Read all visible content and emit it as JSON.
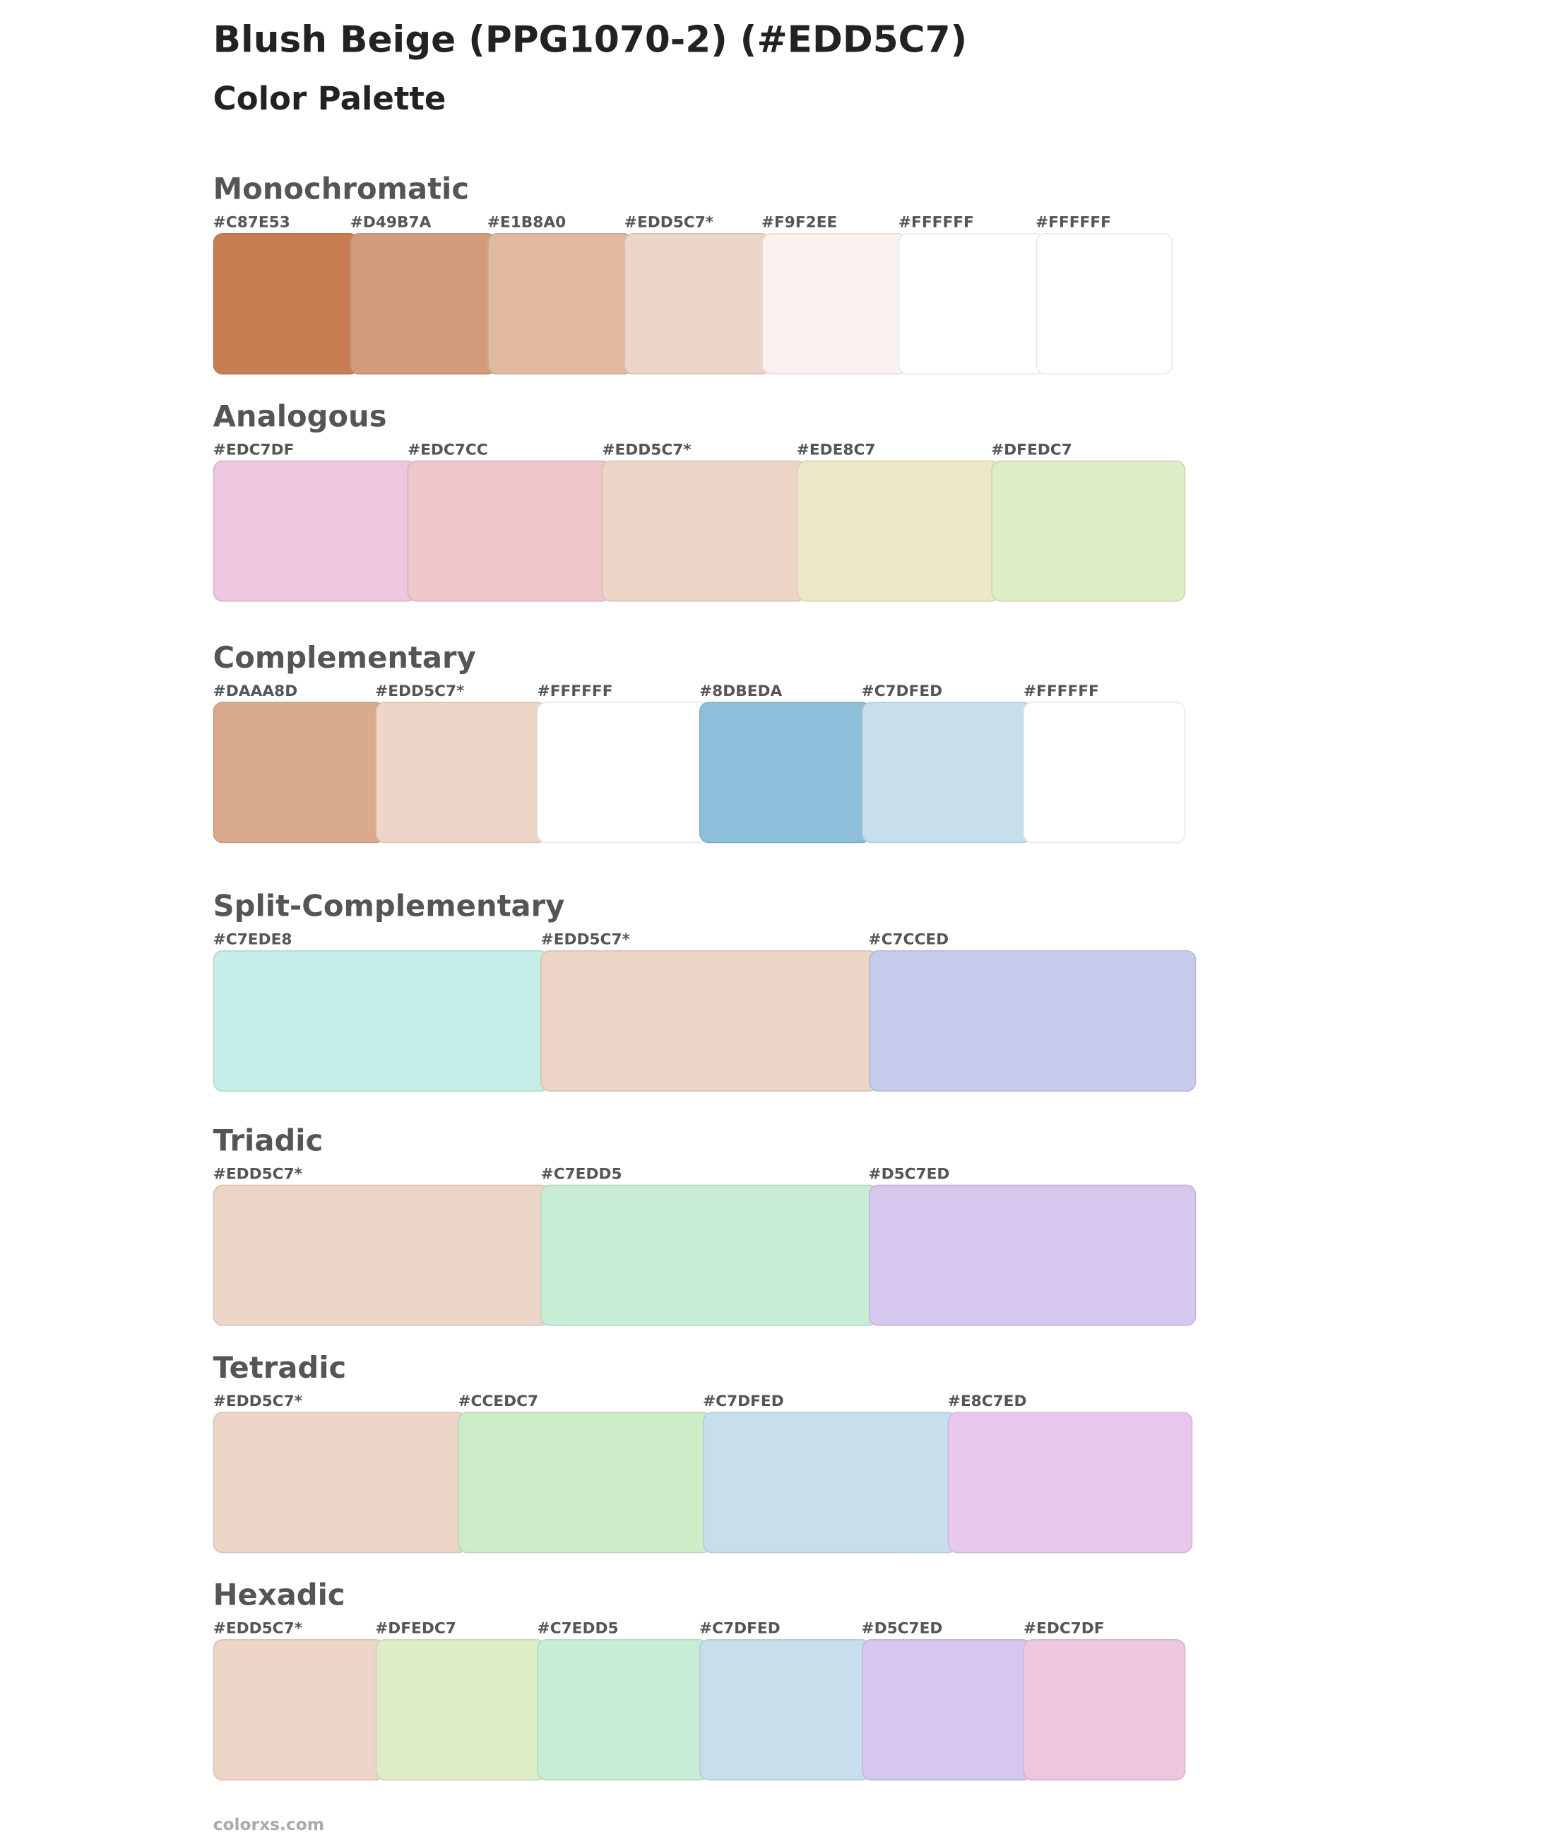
{
  "header": {
    "title": "Blush Beige (PPG1070-2) (#EDD5C7)",
    "subtitle": "Color Palette"
  },
  "sections": [
    {
      "title": "Monochromatic",
      "swatches": [
        {
          "label": "#C87E53",
          "color": "#C87E53"
        },
        {
          "label": "#D49B7A",
          "color": "#D49B7A"
        },
        {
          "label": "#E1B8A0",
          "color": "#E1B8A0"
        },
        {
          "label": "#EDD5C7*",
          "color": "#EDD5C7"
        },
        {
          "label": "#F9F2EE",
          "color": "#F9F2EE"
        },
        {
          "label": "#FFFFFF",
          "color": "#FFFFFF"
        },
        {
          "label": "#FFFFFF",
          "color": "#FFFFFF"
        }
      ]
    },
    {
      "title": "Analogous",
      "swatches": [
        {
          "label": "#EDC7DF",
          "color": "#EDC7DF"
        },
        {
          "label": "#EDC7CC",
          "color": "#EDC7CC"
        },
        {
          "label": "#EDD5C7*",
          "color": "#EDD5C7"
        },
        {
          "label": "#EDE8C7",
          "color": "#EDE8C7"
        },
        {
          "label": "#DFEDC7",
          "color": "#DFEDC7"
        }
      ]
    },
    {
      "title": "Complementary",
      "swatches": [
        {
          "label": "#DAAA8D",
          "color": "#DAAA8D"
        },
        {
          "label": "#EDD5C7*",
          "color": "#EDD5C7"
        },
        {
          "label": "#FFFFFF",
          "color": "#FFFFFF"
        },
        {
          "label": "#8DBEDA",
          "color": "#8DBEDA"
        },
        {
          "label": "#C7DFED",
          "color": "#C7DFED"
        },
        {
          "label": "#FFFFFF",
          "color": "#FFFFFF"
        }
      ]
    },
    {
      "title": "Split-Complementary",
      "swatches": [
        {
          "label": "#C7EDE8",
          "color": "#C7EDE8"
        },
        {
          "label": "#EDD5C7*",
          "color": "#EDD5C7"
        },
        {
          "label": "#C7CCED",
          "color": "#C7CCED"
        }
      ]
    },
    {
      "title": "Triadic",
      "swatches": [
        {
          "label": "#EDD5C7*",
          "color": "#EDD5C7"
        },
        {
          "label": "#C7EDD5",
          "color": "#C7EDD5"
        },
        {
          "label": "#D5C7ED",
          "color": "#D5C7ED"
        }
      ]
    },
    {
      "title": "Tetradic",
      "swatches": [
        {
          "label": "#EDD5C7*",
          "color": "#EDD5C7"
        },
        {
          "label": "#CCEDC7",
          "color": "#CCEDC7"
        },
        {
          "label": "#C7DFED",
          "color": "#C7DFED"
        },
        {
          "label": "#E8C7ED",
          "color": "#E8C7ED"
        }
      ]
    },
    {
      "title": "Hexadic",
      "swatches": [
        {
          "label": "#EDD5C7*",
          "color": "#EDD5C7"
        },
        {
          "label": "#DFEDC7",
          "color": "#DFEDC7"
        },
        {
          "label": "#C7EDD5",
          "color": "#C7EDD5"
        },
        {
          "label": "#C7DFED",
          "color": "#C7DFED"
        },
        {
          "label": "#D5C7ED",
          "color": "#D5C7ED"
        },
        {
          "label": "#EDC7DF",
          "color": "#EDC7DF"
        }
      ]
    }
  ],
  "footer": "colorxs.com"
}
